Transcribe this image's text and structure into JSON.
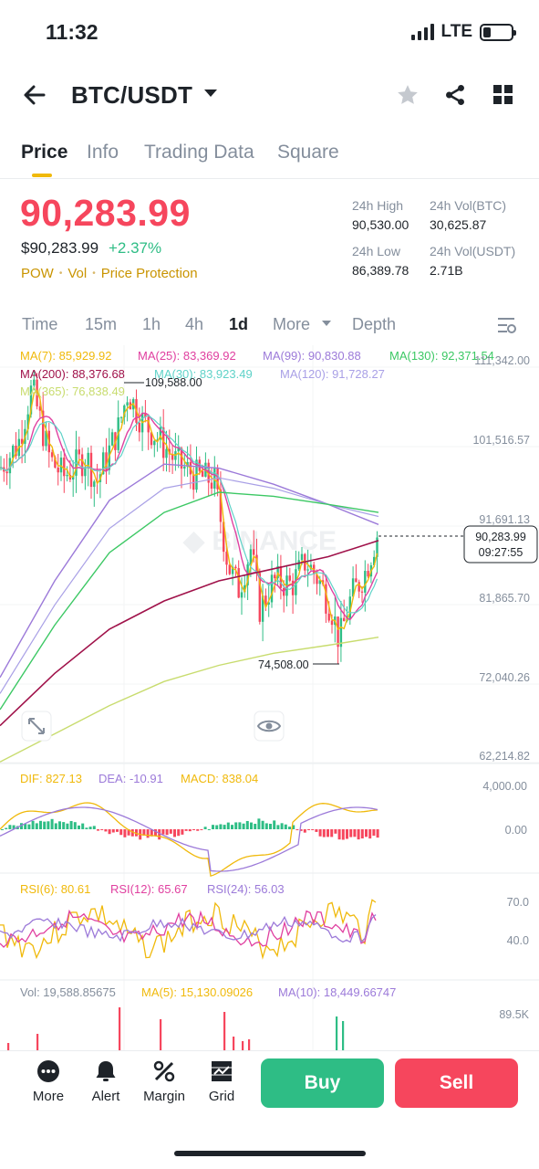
{
  "status_bar": {
    "time": "11:32",
    "network": "LTE",
    "battery_level": 0.25
  },
  "header": {
    "pair": "BTC/USDT",
    "icons": [
      "back-arrow-icon",
      "chevron-down-icon",
      "star-icon",
      "share-icon",
      "grid-icon"
    ]
  },
  "tabs": [
    {
      "label": "Price",
      "active": true
    },
    {
      "label": "Info",
      "active": false
    },
    {
      "label": "Trading Data",
      "active": false
    },
    {
      "label": "Square",
      "active": false
    }
  ],
  "ticker": {
    "last_price": "90,283.99",
    "fiat_price": "$90,283.99",
    "change": "+2.37%",
    "badges": [
      "POW",
      "Vol",
      "Price Protection"
    ],
    "high_label": "24h High",
    "high_value": "90,530.00",
    "vol_btc_label": "24h Vol(BTC)",
    "vol_btc_value": "30,625.87",
    "low_label": "24h Low",
    "low_value": "86,389.78",
    "vol_usdt_label": "24h Vol(USDT)",
    "vol_usdt_value": "2.71B"
  },
  "timeframes": {
    "items": [
      "Time",
      "15m",
      "1h",
      "4h",
      "1d",
      "More",
      "Depth"
    ],
    "active": "1d"
  },
  "chart_data": {
    "type": "candlestick",
    "ma_labels": {
      "ma7": "MA(7): 85,929.92",
      "ma25": "MA(25): 83,369.92",
      "ma99": "MA(99): 90,830.88",
      "ma130": "MA(130): 92,371.54",
      "ma200": "MA(200): 88,376.68",
      "ma30": "MA(30): 83,923.49",
      "ma120": "MA(120): 91,728.27",
      "ma365": "MA(365): 76,838.49"
    },
    "y_axis": [
      "111,342.00",
      "101,516.57",
      "91,691.13",
      "81,865.70",
      "72,040.26",
      "62,214.82"
    ],
    "high_marker": "109,588.00",
    "low_marker": "74,508.00",
    "current_price": "90,283.99",
    "countdown": "09:27:55",
    "colors": {
      "up": "#2ebd85",
      "down": "#f6465d",
      "ma7": "#f0b90b",
      "ma25": "#e040a0",
      "ma99": "#9c7ad9",
      "ma130": "#3cc864",
      "ma200": "#a0124a",
      "ma30": "#5fd2c8",
      "ma120": "#a9a0e6",
      "ma365": "#c8dc6e"
    },
    "macd": {
      "dif": "DIF: 827.13",
      "dea": "DEA: -10.91",
      "macd": "MACD: 838.04",
      "y_axis": [
        "4,000.00",
        "0.00"
      ]
    },
    "rsi": {
      "rsi6": "RSI(6): 80.61",
      "rsi12": "RSI(12): 65.67",
      "rsi24": "RSI(24): 56.03",
      "y_axis": [
        "70.0",
        "40.0"
      ]
    },
    "volume": {
      "vol": "Vol: 19,588.85675",
      "ma5": "MA(5): 15,130.09026",
      "ma10": "MA(10): 18,449.66747",
      "y_axis": [
        "89.5K"
      ]
    }
  },
  "bottom_nav": [
    {
      "label": "More",
      "icon": "more-icon"
    },
    {
      "label": "Alert",
      "icon": "bell-icon"
    },
    {
      "label": "Margin",
      "icon": "margin-icon"
    },
    {
      "label": "Grid",
      "icon": "grid-bot-icon"
    }
  ],
  "actions": {
    "buy": "Buy",
    "sell": "Sell"
  }
}
